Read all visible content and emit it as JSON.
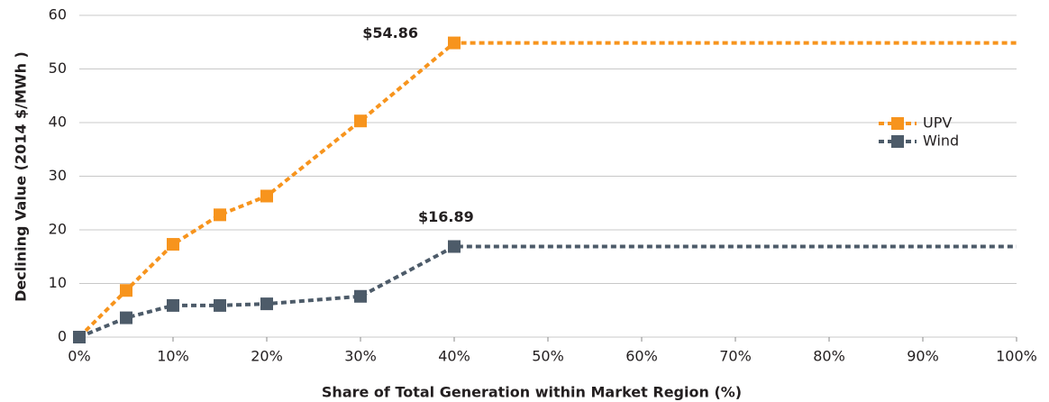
{
  "chart_data": {
    "type": "line",
    "x_label": "Share of Total Generation within Market Region (%)",
    "y_label": "Declining Value (2014 $/MWh )",
    "x": [
      0,
      5,
      10,
      15,
      20,
      30,
      40,
      100
    ],
    "series": [
      {
        "name": "UPV",
        "color": "#f7941d",
        "values": [
          0,
          8.7,
          17.3,
          22.8,
          26.3,
          40.3,
          54.86,
          54.86
        ],
        "value_labels": [
          null,
          null,
          null,
          null,
          null,
          null,
          "$54.86",
          null
        ]
      },
      {
        "name": "Wind",
        "color": "#4d5b69",
        "values": [
          0,
          3.6,
          5.9,
          5.9,
          6.2,
          7.6,
          16.89,
          16.89
        ],
        "value_labels": [
          null,
          null,
          null,
          null,
          null,
          null,
          "$16.89",
          null
        ]
      }
    ],
    "xlim": [
      0,
      100
    ],
    "xticks": [
      {
        "value": 0,
        "label": "0%"
      },
      {
        "value": 10,
        "label": "10%"
      },
      {
        "value": 20,
        "label": "20%"
      },
      {
        "value": 30,
        "label": "30%"
      },
      {
        "value": 40,
        "label": "40%"
      },
      {
        "value": 50,
        "label": "50%"
      },
      {
        "value": 60,
        "label": "60%"
      },
      {
        "value": 70,
        "label": "70%"
      },
      {
        "value": 80,
        "label": "80%"
      },
      {
        "value": 90,
        "label": "90%"
      },
      {
        "value": 100,
        "label": "100%"
      }
    ],
    "ylim": [
      0,
      60
    ],
    "yticks": [
      0,
      10,
      20,
      30,
      40,
      50,
      60
    ],
    "grid": true,
    "legend": "right"
  }
}
